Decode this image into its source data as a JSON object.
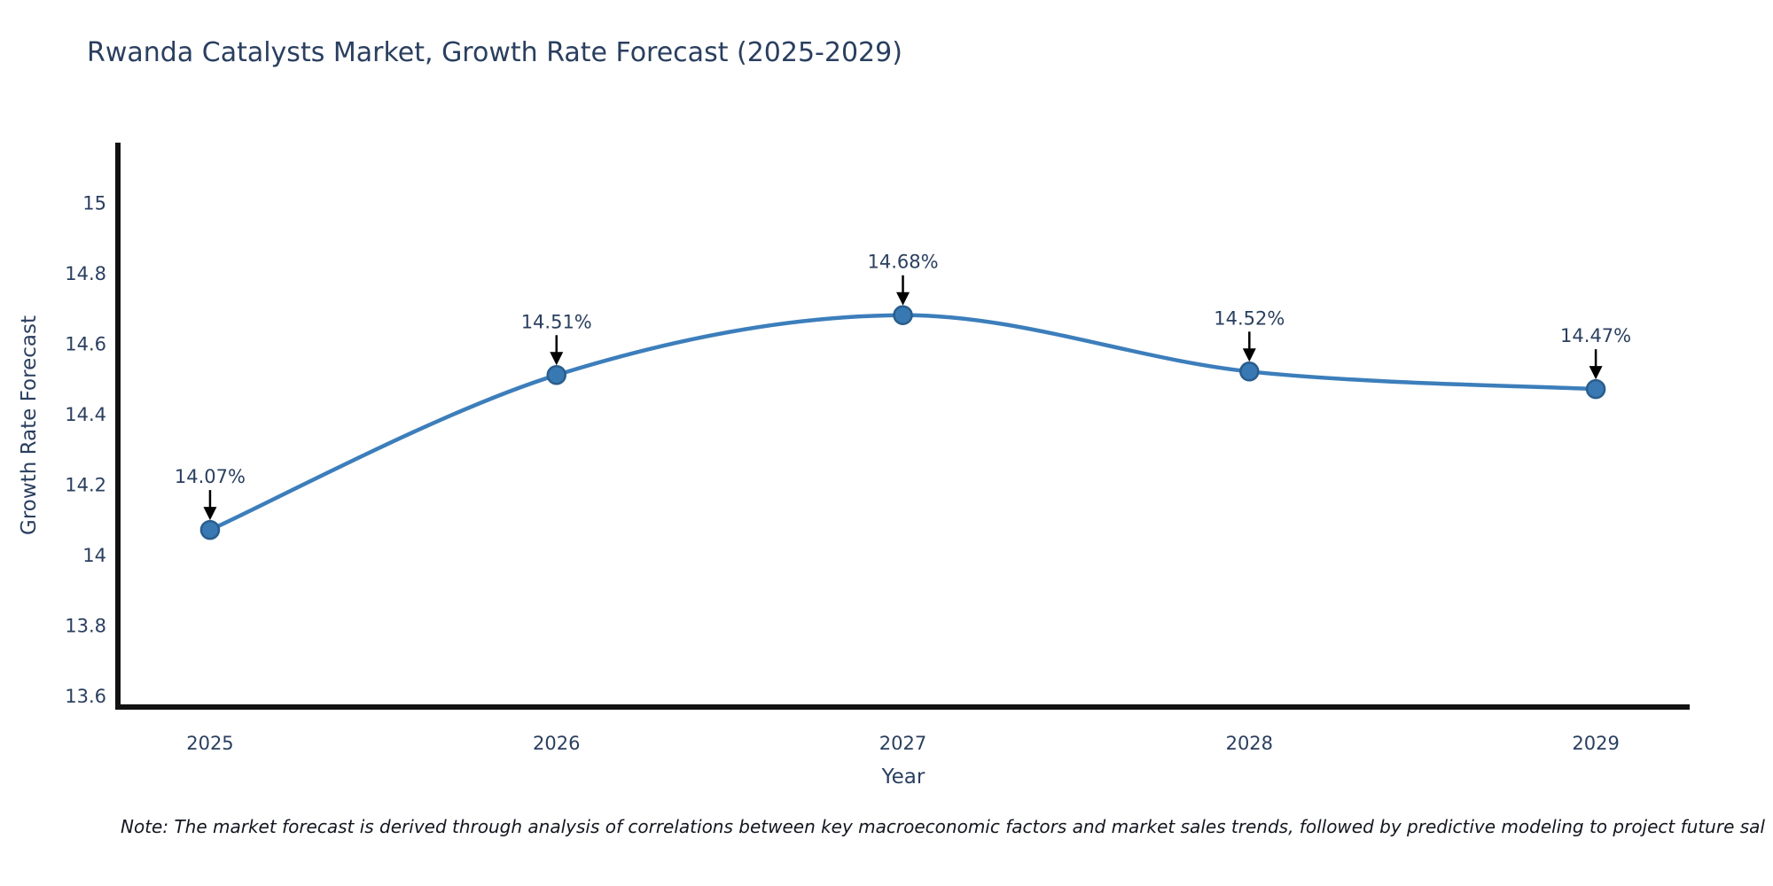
{
  "title": "Rwanda Catalysts Market, Growth Rate Forecast (2025-2029)",
  "note": "Note: The market forecast is derived through analysis of correlations between key macroeconomic factors and market sales trends, followed by predictive modeling to project future sal",
  "chart_data": {
    "type": "line",
    "title": "Rwanda Catalysts Market, Growth Rate Forecast (2025-2029)",
    "xlabel": "Year",
    "ylabel": "Growth Rate Forecast",
    "x": [
      2025,
      2026,
      2027,
      2028,
      2029
    ],
    "x_tick_labels": [
      "2025",
      "2026",
      "2027",
      "2028",
      "2029"
    ],
    "series": [
      {
        "name": "Growth Rate Forecast",
        "values": [
          14.07,
          14.51,
          14.68,
          14.52,
          14.47
        ]
      }
    ],
    "point_labels": [
      "14.07%",
      "14.51%",
      "14.68%",
      "14.52%",
      "14.47%"
    ],
    "y_ticks": [
      13.6,
      13.8,
      14,
      14.2,
      14.4,
      14.6,
      14.8,
      15
    ],
    "ylim": [
      13.567,
      15.17
    ],
    "xlim": [
      2024.734,
      2029.271
    ],
    "grid": false,
    "legend": "none",
    "line_shape": "spline",
    "annotations_style": "value-label-with-down-arrow",
    "colors": {
      "line": "#3c7ebb",
      "marker_fill": "#3879b4",
      "marker_border": "#2a5d8c",
      "axis_line": "#121212",
      "text": "#2a3f5f",
      "arrow": "#000000",
      "note_text": "#13161f",
      "background": "#ffffff"
    }
  }
}
